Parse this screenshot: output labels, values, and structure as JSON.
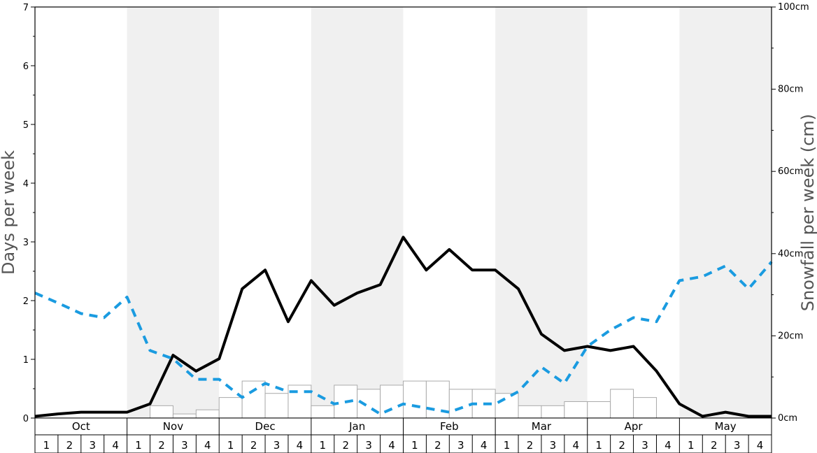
{
  "chart_data": {
    "type": "bar",
    "ylabel_left": "Days per week",
    "ylabel_right": "Snowfall per week (cm)",
    "ylim_left": [
      0,
      7
    ],
    "ylim_right": [
      0,
      100
    ],
    "left_ticks": [
      "0",
      "1",
      "2",
      "3",
      "4",
      "5",
      "6",
      "7"
    ],
    "right_ticks": [
      "0cm",
      "20cm",
      "40cm",
      "60cm",
      "80cm",
      "100cm"
    ],
    "months": [
      "Oct",
      "Nov",
      "Dec",
      "Jan",
      "Feb",
      "Mar",
      "Apr",
      "May"
    ],
    "week_labels": [
      "1",
      "2",
      "3",
      "4"
    ],
    "band_colors": [
      "#ffffff",
      "#f0f0f0"
    ],
    "series": [
      {
        "kind": "bar",
        "axis": "right",
        "color": "#ffffff",
        "edge_color": "#aaaaaa",
        "values": [
          0,
          0,
          0,
          0,
          0,
          3,
          1,
          2,
          5,
          9,
          6,
          8,
          3,
          8,
          7,
          8,
          9,
          9,
          7,
          7,
          6,
          3,
          3,
          4,
          4,
          7,
          5,
          0,
          0,
          0,
          0,
          0
        ]
      },
      {
        "kind": "line",
        "axis": "left",
        "style": "solid",
        "color": "#000000",
        "values": [
          0.03,
          0.07,
          0.1,
          0.1,
          0.1,
          0.24,
          1.07,
          0.8,
          1.01,
          2.2,
          2.52,
          1.64,
          2.34,
          1.92,
          2.13,
          2.27,
          3.08,
          2.52,
          2.87,
          2.52,
          2.52,
          2.2,
          1.43,
          1.15,
          1.22,
          1.15,
          1.22,
          0.8,
          0.24,
          0.03,
          0.1,
          0.03,
          0.03
        ]
      },
      {
        "kind": "line",
        "axis": "left",
        "style": "dashed",
        "color": "#1a9be0",
        "values": [
          2.13,
          1.96,
          1.78,
          1.71,
          2.06,
          1.15,
          1.01,
          0.66,
          0.66,
          0.35,
          0.59,
          0.45,
          0.45,
          0.24,
          0.31,
          0.07,
          0.24,
          0.17,
          0.1,
          0.24,
          0.24,
          0.45,
          0.87,
          0.59,
          1.22,
          1.5,
          1.71,
          1.64,
          2.34,
          2.41,
          2.59,
          2.2,
          2.66
        ]
      }
    ]
  }
}
